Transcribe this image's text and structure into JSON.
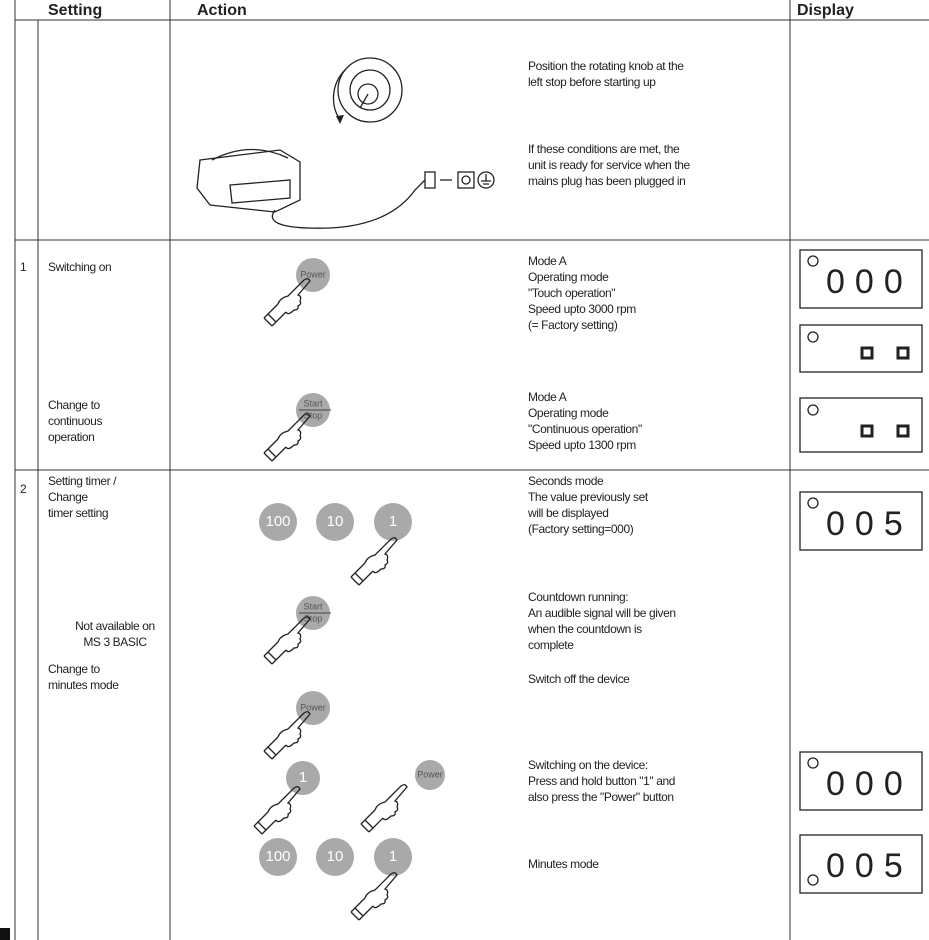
{
  "header": {
    "setting": "Setting",
    "action": "Action",
    "display": "Display"
  },
  "intro": {
    "knob_note": [
      "Position the rotating knob at the",
      "left stop before starting up"
    ],
    "power_note": [
      "If these conditions are met, the",
      "unit is ready for service when the",
      "mains plug has been plugged in"
    ]
  },
  "steps": [
    {
      "number": "1",
      "rows": [
        {
          "setting": [
            "Switching on"
          ],
          "buttons": [
            "Power"
          ],
          "description": [
            "Mode A",
            "Operating mode",
            "\"Touch operation\"",
            "Speed upto 3000 rpm",
            "(= Factory setting)"
          ],
          "display": "000"
        },
        {
          "setting": [
            "Change to",
            "continuous",
            "operation"
          ],
          "buttons": [
            "Start",
            "Stop"
          ],
          "description": [
            "Mode A",
            "Operating mode",
            "\"Continuous operation\"",
            "Speed upto 1300 rpm"
          ]
        }
      ]
    },
    {
      "number": "2",
      "rows": [
        {
          "setting": [
            "Setting timer /",
            "Change",
            "timer setting"
          ],
          "buttons": [
            "100",
            "10",
            "1"
          ],
          "description": [
            "Seconds mode",
            "The value previously set",
            "will be displayed",
            "(Factory setting=000)"
          ],
          "display": "005"
        },
        {
          "setting": [
            "Not available on",
            "MS 3 BASIC"
          ],
          "buttons": [
            "Start",
            "Stop"
          ],
          "description": [
            "Countdown running:",
            "An audible signal will be given",
            "when the countdown is",
            "complete"
          ]
        },
        {
          "setting": [
            "Change to",
            "minutes mode"
          ],
          "buttons": [
            "Power"
          ],
          "description": [
            "Switch off the device"
          ]
        },
        {
          "buttons": [
            "1",
            "Power"
          ],
          "description": [
            "Switching on the device:",
            "Press and hold button \"1\" and",
            "also press the \"Power\" button"
          ],
          "display": "000"
        },
        {
          "buttons": [
            "100",
            "10",
            "1"
          ],
          "description": [
            "Minutes mode"
          ],
          "display": "005"
        }
      ]
    }
  ]
}
